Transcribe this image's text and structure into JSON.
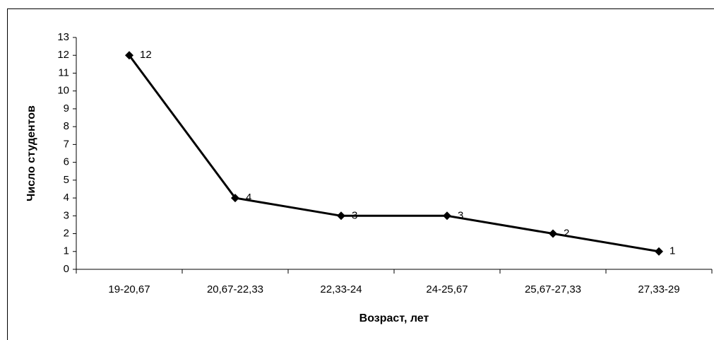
{
  "chart_data": {
    "type": "line",
    "x_label": "Возраст, лет",
    "y_label": "Число студентов",
    "categories": [
      "19-20,67",
      "20,67-22,33",
      "22,33-24",
      "24-25,67",
      "25,67-27,33",
      "27,33-29"
    ],
    "values": [
      12,
      4,
      3,
      3,
      2,
      1
    ],
    "color": "#000000",
    "ylim": [
      0,
      13
    ],
    "yticks": [
      0,
      1,
      2,
      3,
      4,
      5,
      6,
      7,
      8,
      9,
      10,
      11,
      12,
      13
    ],
    "grid": false
  }
}
